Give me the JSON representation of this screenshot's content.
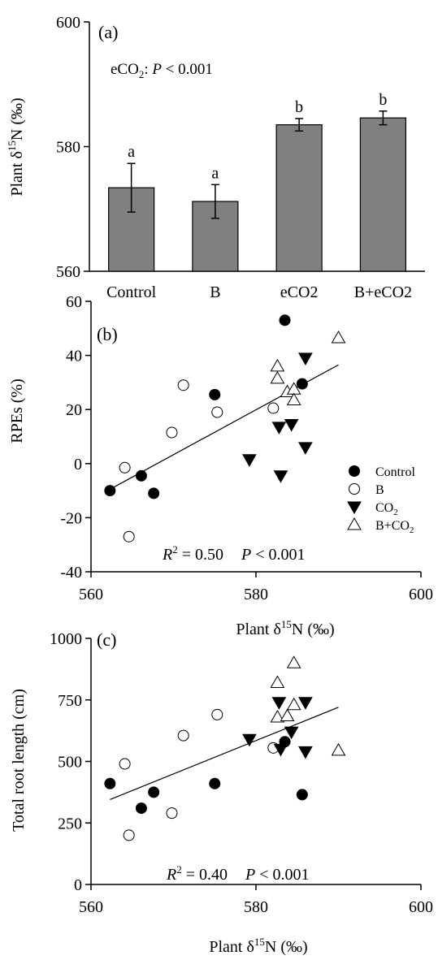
{
  "chart_data": [
    {
      "panel": "(a)",
      "type": "bar",
      "ylabel": "Plant δ15N (‰)",
      "ylabel_parts": {
        "pre": "Plant δ",
        "sup": "15",
        "post": "N (‰)"
      },
      "ylim": [
        560,
        600
      ],
      "yticks": [
        560,
        580,
        600
      ],
      "categories": [
        "Control",
        "B",
        "eCO2",
        "B+eCO2"
      ],
      "values": [
        573.4,
        571.2,
        583.5,
        584.6
      ],
      "errors": [
        3.9,
        2.7,
        1.0,
        1.1
      ],
      "letters": [
        "a",
        "a",
        "b",
        "b"
      ],
      "bar_color": "#808080",
      "annotation": {
        "pre": "eCO",
        "sub": "2",
        "mid": ": ",
        "italic": "P",
        "post": " < 0.001"
      }
    },
    {
      "panel": "(b)",
      "type": "scatter",
      "ylabel": "RPEs (%)",
      "xlabel": "Plant δ15N (‰)",
      "xlabel_parts": {
        "pre": "Plant δ",
        "sup": "15",
        "post": "N (‰)"
      },
      "xlim": [
        560,
        600
      ],
      "xticks": [
        560,
        580,
        600
      ],
      "ylim": [
        -40,
        60
      ],
      "yticks": [
        -40,
        -20,
        0,
        20,
        40,
        60
      ],
      "series": [
        {
          "name": "Control",
          "marker": "filled-circle",
          "points": [
            [
              562.3,
              -10
            ],
            [
              566.1,
              -4.5
            ],
            [
              567.6,
              -11
            ],
            [
              575.0,
              25.5
            ],
            [
              583.5,
              53
            ],
            [
              585.6,
              29.5
            ]
          ]
        },
        {
          "name": "B",
          "marker": "open-circle",
          "points": [
            [
              564.1,
              -1.5
            ],
            [
              564.6,
              -27
            ],
            [
              569.8,
              11.5
            ],
            [
              571.2,
              29
            ],
            [
              575.3,
              19
            ],
            [
              582.1,
              20.5
            ]
          ]
        },
        {
          "name": "CO2",
          "marker": "filled-triangle-down",
          "points": [
            [
              579.2,
              1.5
            ],
            [
              582.8,
              13.5
            ],
            [
              583.0,
              -4.5
            ],
            [
              584.3,
              14.5
            ],
            [
              586.0,
              6
            ],
            [
              586.0,
              39
            ]
          ]
        },
        {
          "name": "B+CO2",
          "marker": "open-triangle-up",
          "points": [
            [
              582.6,
              36
            ],
            [
              582.6,
              31.5
            ],
            [
              583.8,
              26.5
            ],
            [
              584.6,
              27.5
            ],
            [
              584.6,
              23.5
            ],
            [
              590.0,
              46.5
            ]
          ]
        }
      ],
      "legend_labels": [
        {
          "pre": "Control",
          "sub": ""
        },
        {
          "pre": "B",
          "sub": ""
        },
        {
          "pre": "CO",
          "sub": "2"
        },
        {
          "pre": "B+CO",
          "sub": "2"
        }
      ],
      "legend_position": "right",
      "fit_line": {
        "x": [
          562.3,
          590.0
        ],
        "y": [
          -9.5,
          36.5
        ]
      },
      "annotation": {
        "r2": "R",
        "r2_sup": "2",
        "eq": " = 0.50",
        "p": "P",
        "p_post": " < 0.001"
      }
    },
    {
      "panel": "(c)",
      "type": "scatter",
      "ylabel": "Total root length (cm)",
      "xlabel": "Plant δ15N (‰)",
      "xlabel_parts": {
        "pre": "Plant δ",
        "sup": "15",
        "post": "N (‰)"
      },
      "xlim": [
        560,
        600
      ],
      "xticks": [
        560,
        580,
        600
      ],
      "ylim": [
        0,
        1000
      ],
      "yticks": [
        0,
        250,
        500,
        750,
        1000
      ],
      "series": [
        {
          "name": "Control",
          "marker": "filled-circle",
          "points": [
            [
              562.3,
              410
            ],
            [
              566.1,
              310
            ],
            [
              567.6,
              375
            ],
            [
              575.0,
              410
            ],
            [
              583.5,
              580
            ],
            [
              585.6,
              365
            ]
          ]
        },
        {
          "name": "B",
          "marker": "open-circle",
          "points": [
            [
              564.1,
              490
            ],
            [
              564.6,
              200
            ],
            [
              569.8,
              290
            ],
            [
              571.2,
              605
            ],
            [
              575.3,
              690
            ],
            [
              582.1,
              555
            ]
          ]
        },
        {
          "name": "CO2",
          "marker": "filled-triangle-down",
          "points": [
            [
              579.2,
              590
            ],
            [
              582.8,
              740
            ],
            [
              583.0,
              550
            ],
            [
              584.3,
              620
            ],
            [
              586.0,
              540
            ],
            [
              586.0,
              740
            ]
          ]
        },
        {
          "name": "B+CO2",
          "marker": "open-triangle-up",
          "points": [
            [
              582.6,
              820
            ],
            [
              582.6,
              680
            ],
            [
              583.8,
              685
            ],
            [
              584.6,
              730
            ],
            [
              584.6,
              900
            ],
            [
              590.0,
              545
            ]
          ]
        }
      ],
      "fit_line": {
        "x": [
          562.3,
          590.0
        ],
        "y": [
          345,
          720
        ]
      },
      "annotation": {
        "r2": "R",
        "r2_sup": "2",
        "eq": " = 0.40",
        "p": "P",
        "p_post": " < 0.001"
      }
    }
  ]
}
